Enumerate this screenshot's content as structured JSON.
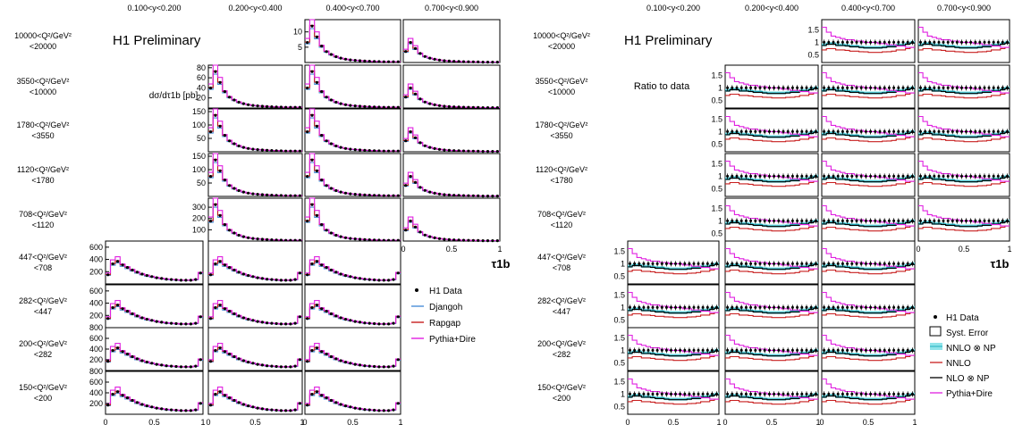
{
  "chart_data": [
    {
      "type": "line",
      "title": "H1 Preliminary",
      "ylabel": "dσ/dτ1b [pb]",
      "xlabel": "τ1b",
      "column_labels": [
        "0.100<y<0.200",
        "0.200<y<0.400",
        "0.400<y<0.700",
        "0.700<y<0.900"
      ],
      "row_labels": [
        [
          "10000<Q²/GeV²",
          "<20000"
        ],
        [
          "3550<Q²/GeV²",
          "<10000"
        ],
        [
          "1780<Q²/GeV²",
          "<3550"
        ],
        [
          "1120<Q²/GeV²",
          "<1780"
        ],
        [
          "708<Q²/GeV²",
          "<1120"
        ],
        [
          "447<Q²/GeV²",
          "<708"
        ],
        [
          "282<Q²/GeV²",
          "<447"
        ],
        [
          "200<Q²/GeV²",
          "<282"
        ],
        [
          "150<Q²/GeV²",
          "<200"
        ]
      ],
      "x_ticks": [
        "0",
        "0.5",
        "1"
      ],
      "x_axis_unit_label": "1",
      "row_y_ticks": [
        [
          "10",
          "5"
        ],
        [
          "80",
          "60",
          "40",
          "20"
        ],
        [
          "150",
          "100",
          "50"
        ],
        [
          "150",
          "100",
          "50"
        ],
        [
          "300",
          "200",
          "100"
        ],
        [
          "600",
          "400",
          "200"
        ],
        [
          "600",
          "400",
          "200"
        ],
        [
          "800",
          "600",
          "400",
          "200"
        ],
        [
          "800",
          "600",
          "400",
          "200"
        ]
      ],
      "row_ymax": [
        14,
        85,
        160,
        160,
        380,
        700,
        700,
        800,
        800
      ],
      "legend": {
        "placement": "lower-right",
        "entries": [
          "H1 Data",
          "Djangoh",
          "Rapgap",
          "Pythia+Dire"
        ]
      },
      "series_colors": {
        "data": "#000000",
        "Djangoh": "#4a8fd8",
        "Rapgap": "#c81e1e",
        "Pythia+Dire": "#e020e0"
      },
      "shape_x": [
        0.025,
        0.075,
        0.125,
        0.175,
        0.225,
        0.275,
        0.325,
        0.375,
        0.425,
        0.475,
        0.525,
        0.575,
        0.625,
        0.675,
        0.725,
        0.775,
        0.825,
        0.875,
        0.925,
        0.975
      ],
      "shape_peak_falling": [
        0.55,
        1.0,
        0.7,
        0.45,
        0.3,
        0.22,
        0.16,
        0.12,
        0.09,
        0.07,
        0.06,
        0.05,
        0.04,
        0.035,
        0.03,
        0.025,
        0.02,
        0.02,
        0.02,
        0.02
      ],
      "shape_peak_low_q2": [
        0.25,
        0.55,
        0.62,
        0.52,
        0.45,
        0.38,
        0.32,
        0.27,
        0.23,
        0.2,
        0.17,
        0.15,
        0.13,
        0.12,
        0.11,
        0.1,
        0.1,
        0.1,
        0.12,
        0.3
      ]
    },
    {
      "type": "line",
      "title": "H1 Preliminary",
      "ylabel": "Ratio to data",
      "xlabel": "τ1b",
      "column_labels": [
        "0.100<y<0.200",
        "0.200<y<0.400",
        "0.400<y<0.700",
        "0.700<y<0.900"
      ],
      "row_labels": [
        [
          "10000<Q²/GeV²",
          "<20000"
        ],
        [
          "3550<Q²/GeV²",
          "<10000"
        ],
        [
          "1780<Q²/GeV²",
          "<3550"
        ],
        [
          "1120<Q²/GeV²",
          "<1780"
        ],
        [
          "708<Q²/GeV²",
          "<1120"
        ],
        [
          "447<Q²/GeV²",
          "<708"
        ],
        [
          "282<Q²/GeV²",
          "<447"
        ],
        [
          "200<Q²/GeV²",
          "<282"
        ],
        [
          "150<Q²/GeV²",
          "<200"
        ]
      ],
      "x_ticks": [
        "0",
        "0.5",
        "1"
      ],
      "y_ticks": [
        "1.5",
        "1",
        "0.5"
      ],
      "ylim": [
        0.2,
        1.9
      ],
      "legend": {
        "placement": "lower-right",
        "entries": [
          "H1 Data",
          "Syst. Error",
          "NNLO ⊗ NP",
          "NNLO",
          "NLO ⊗ NP",
          "Pythia+Dire"
        ]
      },
      "series_colors": {
        "data": "#000000",
        "NNLO ⊗ NP": "#20b0c0",
        "NNLO ⊗ NP band": "#8fe4ea",
        "NNLO": "#c81e1e",
        "NLO ⊗ NP": "#000000",
        "Pythia+Dire": "#e020e0"
      },
      "ratio_x": [
        0.025,
        0.075,
        0.125,
        0.175,
        0.225,
        0.275,
        0.325,
        0.375,
        0.425,
        0.475,
        0.525,
        0.575,
        0.625,
        0.675,
        0.725,
        0.775,
        0.825,
        0.875,
        0.925,
        0.975
      ],
      "ratio_pythia": [
        1.6,
        1.4,
        1.25,
        1.2,
        1.15,
        1.1,
        1.1,
        1.05,
        1.05,
        1.0,
        1.0,
        1.0,
        0.95,
        0.95,
        0.9,
        0.9,
        0.85,
        0.85,
        0.8,
        0.8
      ],
      "ratio_nnlo_np": [
        0.9,
        0.95,
        0.95,
        0.9,
        0.9,
        0.88,
        0.85,
        0.85,
        0.82,
        0.8,
        0.8,
        0.8,
        0.8,
        0.82,
        0.85,
        0.85,
        0.9,
        0.9,
        0.95,
        1.0
      ],
      "ratio_nnlo": [
        0.7,
        0.75,
        0.75,
        0.7,
        0.7,
        0.68,
        0.65,
        0.65,
        0.63,
        0.62,
        0.6,
        0.6,
        0.6,
        0.62,
        0.63,
        0.65,
        0.7,
        0.7,
        0.75,
        0.8
      ]
    }
  ]
}
